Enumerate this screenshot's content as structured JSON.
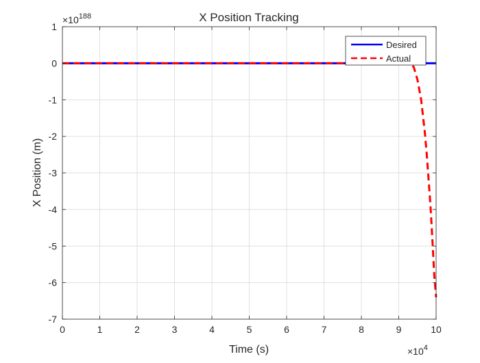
{
  "chart_data": {
    "type": "line",
    "title": "X Position Tracking",
    "xlabel": "Time (s)",
    "ylabel": "X Position (m)",
    "xlim": [
      0,
      10
    ],
    "ylim": [
      -7,
      1
    ],
    "x_multiplier": "×10",
    "x_exponent": "4",
    "y_multiplier": "×10",
    "y_exponent": "188",
    "x_ticks": [
      0,
      1,
      2,
      3,
      4,
      5,
      6,
      7,
      8,
      9,
      10
    ],
    "y_ticks": [
      1,
      0,
      -1,
      -2,
      -3,
      -4,
      -5,
      -6,
      -7
    ],
    "grid": true,
    "legend_position": "top-right",
    "series": [
      {
        "name": "Desired",
        "color": "#0000ff",
        "style": "solid",
        "x": [
          0,
          10
        ],
        "y": [
          0,
          0
        ]
      },
      {
        "name": "Actual",
        "color": "#ff0000",
        "style": "dashed",
        "x": [
          0,
          9.0,
          9.3,
          9.4,
          9.5,
          9.6,
          9.7,
          9.75,
          9.8,
          9.85,
          9.9,
          9.95,
          10.0
        ],
        "y": [
          0,
          0,
          0,
          -0.1,
          -0.45,
          -1.0,
          -1.9,
          -2.5,
          -3.2,
          -3.9,
          -4.8,
          -5.8,
          -6.4
        ]
      }
    ]
  }
}
